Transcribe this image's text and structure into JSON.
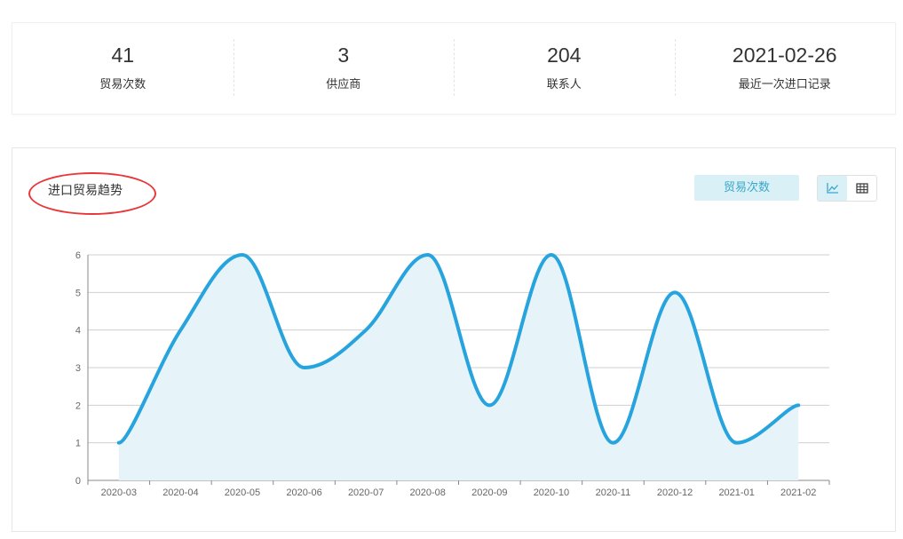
{
  "stats": [
    {
      "value": "41",
      "label": "贸易次数"
    },
    {
      "value": "3",
      "label": "供应商"
    },
    {
      "value": "204",
      "label": "联系人"
    },
    {
      "value": "2021-02-26",
      "label": "最近一次进口记录"
    }
  ],
  "panel": {
    "title": "进口贸易趋势",
    "metric_button": "贸易次数",
    "view_toggle": [
      {
        "icon": "line-chart-icon",
        "active": true
      },
      {
        "icon": "table-icon",
        "active": false
      }
    ]
  },
  "colors": {
    "line": "#27a3dd",
    "area": "#e6f4fa",
    "annotation": "#e8383b"
  },
  "chart_data": {
    "type": "line",
    "smooth": true,
    "area": true,
    "categories": [
      "2020-03",
      "2020-04",
      "2020-05",
      "2020-06",
      "2020-07",
      "2020-08",
      "2020-09",
      "2020-10",
      "2020-11",
      "2020-12",
      "2021-01",
      "2021-02"
    ],
    "values": [
      1,
      4,
      6,
      3,
      4,
      6,
      2,
      6,
      1,
      5,
      1,
      2
    ],
    "yticks": [
      0,
      1,
      2,
      3,
      4,
      5,
      6
    ],
    "ylim": [
      0,
      6
    ],
    "grid": true,
    "title": "",
    "xlabel": "",
    "ylabel": ""
  }
}
